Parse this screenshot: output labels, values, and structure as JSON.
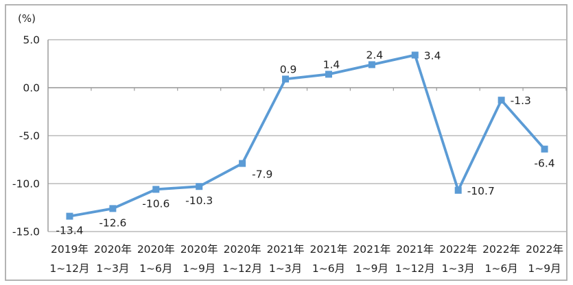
{
  "chart": {
    "unit_label": "(%)",
    "colors": {
      "line": "#5B9BD5",
      "marker": "#5B9BD5",
      "gridline": "#ACACAC",
      "axis": "#9B9B9B",
      "border": "#ABABAB",
      "text": "#1f1f1f"
    }
  },
  "chart_data": {
    "type": "line",
    "title": "",
    "ylabel": "(%)",
    "xlabel": "",
    "ylim": [
      -15.0,
      5.0
    ],
    "y_ticks": [
      5.0,
      0.0,
      -5.0,
      -10.0,
      -15.0
    ],
    "y_tick_labels": [
      "5.0",
      "0.0",
      "-5.0",
      "-10.0",
      "-15.0"
    ],
    "categories": [
      {
        "line1": "2019年",
        "line2": "1~12月"
      },
      {
        "line1": "2020年",
        "line2": "1~3月"
      },
      {
        "line1": "2020年",
        "line2": "1~6月"
      },
      {
        "line1": "2020年",
        "line2": "1~9月"
      },
      {
        "line1": "2020年",
        "line2": "1~12月"
      },
      {
        "line1": "2021年",
        "line2": "1~3月"
      },
      {
        "line1": "2021年",
        "line2": "1~6月"
      },
      {
        "line1": "2021年",
        "line2": "1~9月"
      },
      {
        "line1": "2021年",
        "line2": "1~12月"
      },
      {
        "line1": "2022年",
        "line2": "1~3月"
      },
      {
        "line1": "2022年",
        "line2": "1~6月"
      },
      {
        "line1": "2022年",
        "line2": "1~9月"
      }
    ],
    "values": [
      -13.4,
      -12.6,
      -10.6,
      -10.3,
      -7.9,
      0.9,
      1.4,
      2.4,
      3.4,
      -10.7,
      -1.3,
      -6.4
    ],
    "data_labels": [
      "-13.4",
      "-12.6",
      "-10.6",
      "-10.3",
      "-7.9",
      "0.9",
      "1.4",
      "2.4",
      "3.4",
      "-10.7",
      "-1.3",
      "-6.4"
    ],
    "label_placements": [
      "below",
      "below",
      "below",
      "below",
      "below-right",
      "above",
      "above",
      "above",
      "right",
      "right",
      "right",
      "below"
    ],
    "grid": true,
    "legend": "none",
    "marker": "square",
    "axis_cross_value": 0.0
  }
}
